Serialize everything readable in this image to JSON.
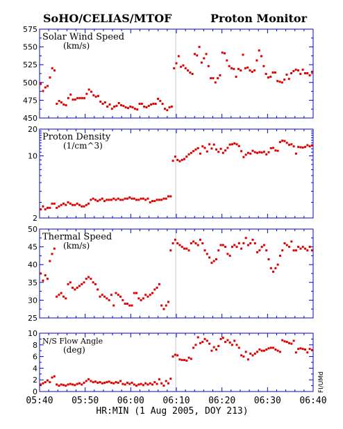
{
  "header": {
    "left_title": "SoHO/CELIAS/MTOF",
    "right_title": "Proton Monitor"
  },
  "side_label": "FI/UMd",
  "x_axis_label": "HR:MIN (1 Aug 2005, DOY 213)",
  "x_ticks": [
    "05:40",
    "05:50",
    "06:00",
    "06:10",
    "06:20",
    "06:30",
    "06:40"
  ],
  "colors": {
    "frame": "#0000cc",
    "points": "#dd0000",
    "separator": "#bbbbbb"
  },
  "chart_data": [
    {
      "type": "scatter",
      "title": "Solar Wind Speed",
      "unit": "(km/s)",
      "ylim": [
        450,
        575
      ],
      "yscale": "linear",
      "y_ticks": [
        450,
        475,
        500,
        525,
        550,
        575
      ],
      "y_tick_labels": [
        "450",
        "475",
        "500",
        "525",
        "550",
        "575"
      ],
      "values": [
        498,
        488,
        493,
        495,
        507,
        520,
        517,
        470,
        474,
        472,
        469,
        468,
        478,
        483,
        476,
        476,
        478,
        478,
        478,
        478,
        484,
        490,
        487,
        482,
        480,
        481,
        473,
        470,
        472,
        466,
        469,
        463,
        466,
        467,
        471,
        468,
        467,
        465,
        464,
        466,
        465,
        463,
        462,
        470,
        470,
        466,
        465,
        467,
        469,
        470,
        470,
        477,
        474,
        470,
        463,
        461,
        465,
        466,
        520,
        527,
        537,
        522,
        524,
        520,
        517,
        514,
        512,
        540,
        538,
        550,
        528,
        534,
        540,
        523,
        506,
        506,
        500,
        506,
        510,
        542,
        541,
        531,
        523,
        520,
        519,
        508,
        519,
        517,
        539,
        520,
        521,
        517,
        515,
        517,
        531,
        545,
        537,
        523,
        512,
        507,
        508,
        514,
        514,
        502,
        501,
        500,
        504,
        511,
        505,
        513,
        516,
        518,
        517,
        512,
        518,
        513,
        513,
        510,
        515
      ]
    },
    {
      "type": "scatter",
      "title": "Proton Density",
      "unit": "(1/cm^3)",
      "ylim": [
        2,
        20
      ],
      "yscale": "log",
      "y_ticks": [
        2,
        10,
        20
      ],
      "y_tick_labels": [
        "2",
        "10",
        "20"
      ],
      "values": [
        2.5,
        2.7,
        2.5,
        2.6,
        2.6,
        2.9,
        2.9,
        2.6,
        2.7,
        2.8,
        2.9,
        2.8,
        3.0,
        2.9,
        2.8,
        2.8,
        2.9,
        2.8,
        2.7,
        2.7,
        2.8,
        2.9,
        3.2,
        3.3,
        3.2,
        3.1,
        3.2,
        3.3,
        3.1,
        3.2,
        3.2,
        3.2,
        3.3,
        3.2,
        3.3,
        3.2,
        3.2,
        3.3,
        3.3,
        3.4,
        3.3,
        3.3,
        3.2,
        3.2,
        3.3,
        3.3,
        3.2,
        3.3,
        3.0,
        3.1,
        3.1,
        3.2,
        3.2,
        3.2,
        3.3,
        3.3,
        3.5,
        3.5,
        8.8,
        9.8,
        9.0,
        8.7,
        9.0,
        9.2,
        9.8,
        10.4,
        10.8,
        11.3,
        11.8,
        12.2,
        10.6,
        12.8,
        12.3,
        11.2,
        13.5,
        12.1,
        13.4,
        11.8,
        11.1,
        12.0,
        10.8,
        11.5,
        12.3,
        13.4,
        13.5,
        13.8,
        13.5,
        12.9,
        11.3,
        9.7,
        10.3,
        10.8,
        10.6,
        11.4,
        11.0,
        10.8,
        11.0,
        10.9,
        11.1,
        10.4,
        11.0,
        12.2,
        12.3,
        11.5,
        11.4,
        14.3,
        14.8,
        14.7,
        14.0,
        13.3,
        13.5,
        12.8,
        10.6,
        12.6,
        12.5,
        12.4,
        12.6,
        13.2,
        12.8,
        13.1
      ]
    },
    {
      "type": "scatter",
      "title": "Thermal Speed",
      "unit": "(km/s)",
      "ylim": [
        25,
        50
      ],
      "yscale": "linear",
      "y_ticks": [
        25,
        30,
        35,
        40,
        45,
        50
      ],
      "y_tick_labels": [
        "25",
        "30",
        "35",
        "40",
        "45",
        "50"
      ],
      "values": [
        37.5,
        35.5,
        37,
        36,
        41,
        43,
        44.5,
        31,
        31.5,
        32,
        31,
        30.5,
        34.5,
        35,
        33.5,
        33,
        33.5,
        34,
        34.5,
        35,
        36,
        36.5,
        36,
        35,
        34.5,
        33,
        31,
        31.5,
        31,
        30.5,
        30,
        31.5,
        28.5,
        32,
        31.5,
        31,
        30,
        29,
        29,
        28.5,
        28.5,
        32,
        32,
        30.5,
        30,
        30.5,
        31.5,
        31,
        31.5,
        32,
        33,
        33.5,
        34.5,
        28.5,
        27.5,
        28.5,
        29.5,
        44,
        46,
        47,
        46,
        45.5,
        45,
        44.5,
        44.5,
        44,
        46,
        46.5,
        46,
        45.5,
        47,
        46,
        44,
        43,
        42,
        40.5,
        41,
        41.5,
        44,
        45.5,
        45.5,
        45,
        43,
        42.5,
        45,
        45.5,
        45,
        46,
        44.5,
        46,
        47.5,
        45.5,
        46,
        47,
        46,
        43.5,
        44,
        45,
        45.5,
        44,
        41.5,
        39,
        38,
        39,
        40,
        42.5,
        44,
        46,
        45.5,
        45,
        46.5,
        44,
        44,
        45,
        44.5,
        45,
        44.5,
        44,
        45,
        44
      ]
    },
    {
      "type": "scatter",
      "title": "N/S Flow Angle",
      "unit": "(deg)",
      "ylim": [
        0,
        10
      ],
      "yscale": "linear",
      "y_ticks": [
        0,
        2,
        4,
        6,
        8,
        10
      ],
      "y_tick_labels": [
        "0",
        "2",
        "4",
        "6",
        "8",
        "10"
      ],
      "values": [
        1.2,
        1.4,
        1.6,
        1.9,
        1.6,
        2.4,
        2.6,
        1.2,
        1.0,
        1.2,
        1.1,
        1.0,
        1.2,
        1.3,
        1.2,
        1.1,
        1.3,
        1.4,
        1.2,
        1.5,
        1.8,
        2.1,
        1.8,
        1.6,
        1.7,
        1.5,
        1.6,
        1.4,
        1.5,
        1.6,
        1.7,
        1.5,
        1.4,
        1.6,
        1.5,
        1.8,
        1.3,
        1.2,
        1.5,
        1.3,
        1.5,
        1.2,
        1.0,
        1.2,
        1.3,
        1.1,
        1.4,
        1.2,
        1.4,
        1.2,
        1.6,
        1.3,
        2.1,
        1.4,
        1.0,
        1.8,
        1.4,
        2.2,
        6.0,
        6.3,
        6.2,
        5.5,
        5.4,
        5.4,
        5.3,
        5.8,
        5.6,
        7.5,
        8.0,
        9.3,
        8.3,
        8.5,
        9.0,
        8.7,
        8.2,
        7.0,
        7.6,
        7.2,
        7.8,
        9.0,
        9.2,
        8.5,
        8.8,
        8.4,
        8.0,
        8.7,
        8.0,
        7.5,
        6.2,
        6.0,
        6.8,
        5.5,
        6.5,
        6.2,
        6.5,
        6.8,
        7.2,
        7.0,
        7.0,
        7.2,
        7.4,
        7.5,
        7.5,
        7.2,
        7.0,
        6.8,
        8.8,
        8.6,
        8.5,
        8.3,
        8.2,
        8.7,
        6.7,
        7.3,
        7.4,
        7.3,
        7.2,
        6.7,
        7.3,
        7.1
      ]
    }
  ]
}
